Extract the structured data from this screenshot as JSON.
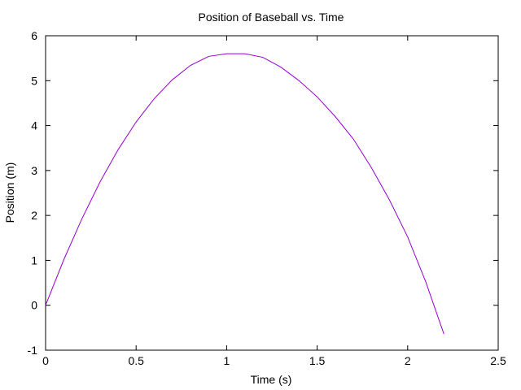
{
  "chart_data": {
    "type": "line",
    "title": "Position of Baseball vs. Time",
    "xlabel": "Time (s)",
    "ylabel": "Position (m)",
    "xlim": [
      0,
      2.5
    ],
    "ylim": [
      -1,
      6
    ],
    "xticks": [
      0,
      0.5,
      1,
      1.5,
      2,
      2.5
    ],
    "xtick_labels": [
      "0",
      "0.5",
      "1",
      "1.5",
      "2",
      "2.5"
    ],
    "yticks": [
      -1,
      0,
      1,
      2,
      3,
      4,
      5,
      6
    ],
    "ytick_labels": [
      "-1",
      "0",
      "1",
      "2",
      "3",
      "4",
      "5",
      "6"
    ],
    "grid": false,
    "legend": "none",
    "series": [
      {
        "name": "position",
        "color": "#9400d3",
        "x": [
          0,
          0.1,
          0.2,
          0.3,
          0.4,
          0.5,
          0.6,
          0.7,
          0.8,
          0.9,
          1.0,
          1.1,
          1.2,
          1.3,
          1.4,
          1.5,
          1.6,
          1.7,
          1.8,
          1.9,
          2.0,
          2.1,
          2.2
        ],
        "y": [
          0,
          1.01,
          1.92,
          2.74,
          3.46,
          4.08,
          4.6,
          5.02,
          5.34,
          5.54,
          5.6,
          5.6,
          5.52,
          5.3,
          5.0,
          4.64,
          4.2,
          3.7,
          3.06,
          2.34,
          1.52,
          0.52,
          -0.64
        ]
      }
    ]
  }
}
